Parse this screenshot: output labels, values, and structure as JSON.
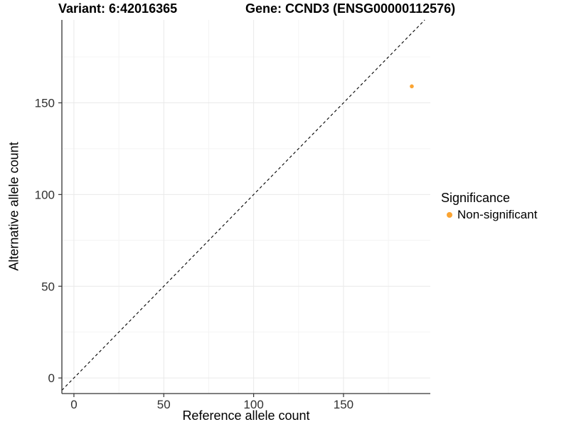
{
  "titles": {
    "variant": "Variant: 6:42016365",
    "gene": "Gene: CCND3 (ENSG00000112576)"
  },
  "legend": {
    "title": "Significance",
    "items": [
      {
        "label": "Non-significant",
        "color": "#FBA432"
      }
    ]
  },
  "colors": {
    "point_orange": "#FBA432",
    "axis_line": "#333333",
    "grid_major": "#e9e9e9",
    "grid_minor": "#f4f4f4",
    "tick_text": "#303030",
    "background": "#ffffff"
  },
  "chart_data": {
    "type": "scatter",
    "title": "Variant: 6:42016365 / Gene: CCND3 (ENSG00000112576)",
    "xlabel": "Reference allele count",
    "ylabel": "Alternative allele count",
    "x_ticks": [
      0,
      50,
      100,
      150
    ],
    "y_ticks": [
      0,
      50,
      100,
      150
    ],
    "x_minor_ticks": [
      25,
      75,
      125,
      175
    ],
    "y_minor_ticks": [
      25,
      75,
      125,
      175
    ],
    "xlim": [
      -6.7,
      198.3
    ],
    "ylim": [
      -8.5,
      195.2
    ],
    "grid": "major and minor, very light gray on white panel",
    "legend_position": "right",
    "reference_line": {
      "type": "identity y=x",
      "style": "dashed",
      "color": "#000000"
    },
    "series": [
      {
        "name": "Non-significant",
        "color": "#FBA432",
        "points": [
          {
            "x": 188,
            "y": 159
          }
        ]
      }
    ]
  }
}
